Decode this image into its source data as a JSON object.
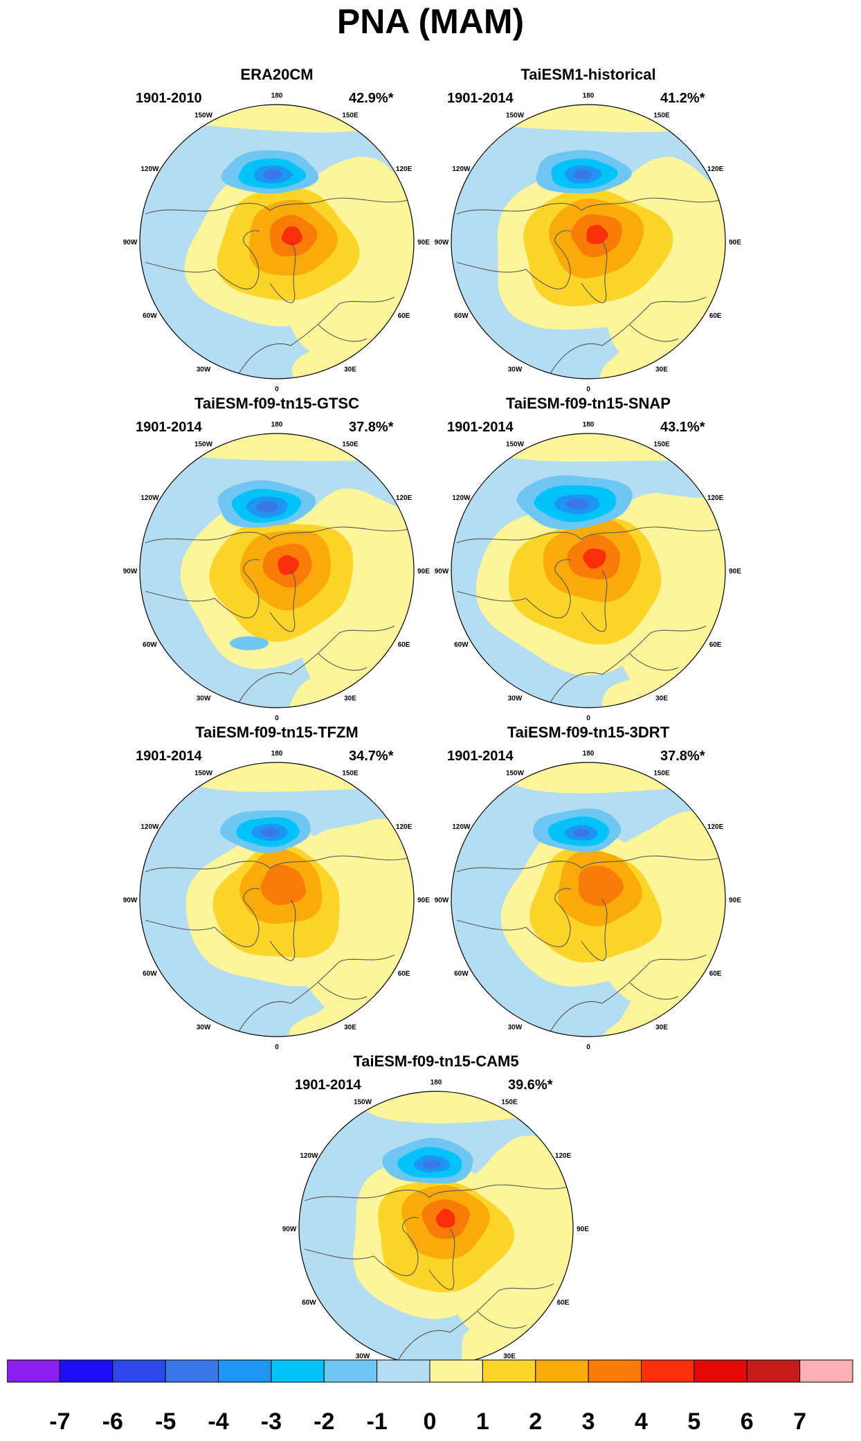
{
  "figure": {
    "title": "PNA (MAM)"
  },
  "panels": [
    {
      "title": "ERA20CM",
      "period": "1901-2010",
      "explained_variance": "42.9%*",
      "variant": 0
    },
    {
      "title": "TaiESM1-historical",
      "period": "1901-2014",
      "explained_variance": "41.2%*",
      "variant": 1
    },
    {
      "title": "TaiESM-f09-tn15-GTSC",
      "period": "1901-2014",
      "explained_variance": "37.8%*",
      "variant": 2
    },
    {
      "title": "TaiESM-f09-tn15-SNAP",
      "period": "1901-2014",
      "explained_variance": "43.1%*",
      "variant": 3
    },
    {
      "title": "TaiESM-f09-tn15-TFZM",
      "period": "1901-2014",
      "explained_variance": "34.7%*",
      "variant": 4
    },
    {
      "title": "TaiESM-f09-tn15-3DRT",
      "period": "1901-2014",
      "explained_variance": "37.8%*",
      "variant": 5
    },
    {
      "title": "TaiESM-f09-tn15-CAM5",
      "period": "1901-2014",
      "explained_variance": "39.6%*",
      "variant": 6
    }
  ],
  "longitude_labels": [
    "180",
    "150E",
    "120E",
    "90E",
    "60E",
    "30E",
    "0",
    "30W",
    "60W",
    "90W",
    "120W",
    "150W"
  ],
  "colorbar": {
    "labels": [
      "-7",
      "-6",
      "-5",
      "-4",
      "-3",
      "-2",
      "-1",
      "0",
      "1",
      "2",
      "3",
      "4",
      "5",
      "6",
      "7"
    ],
    "colors": [
      "#8a1ff0",
      "#1a0ff5",
      "#2d48ea",
      "#3a78ea",
      "#1c96f2",
      "#00c3f8",
      "#6ec7f2",
      "#b4ddf2",
      "#fcf59a",
      "#fdd52a",
      "#f9ab0a",
      "#f97c0a",
      "#f9300a",
      "#e30a0a",
      "#c81c1c",
      "#f9b1b4"
    ]
  },
  "map_colors": {
    "land_outline": "#555555",
    "frame": "#000000"
  }
}
